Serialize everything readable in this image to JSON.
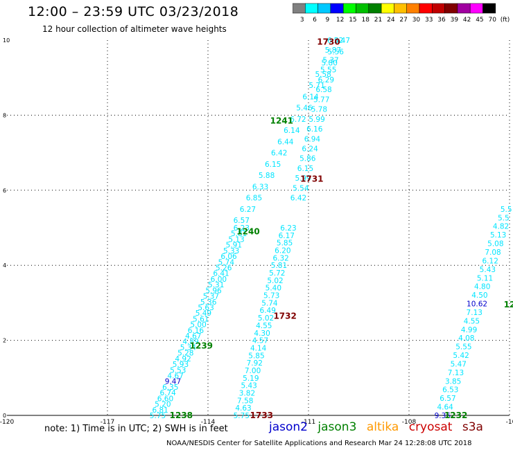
{
  "header": {
    "title": "12:00 – 23:59 UTC 03/23/2018",
    "subtitle": "12 hour collection of altimeter wave heights"
  },
  "color_scale": {
    "labels": [
      "3",
      "6",
      "9",
      "12",
      "15",
      "18",
      "21",
      "24",
      "27",
      "30",
      "33",
      "36",
      "39",
      "42",
      "45",
      "70",
      "(ft)"
    ],
    "colors": [
      "#808080",
      "#00ffff",
      "#00c8ff",
      "#0000ff",
      "#00ff00",
      "#00c000",
      "#008000",
      "#ffff00",
      "#ffc000",
      "#ff8000",
      "#ff0000",
      "#c00000",
      "#800000",
      "#a000a0",
      "#ff00ff",
      "#000000"
    ]
  },
  "legend": {
    "jason2": {
      "label": "jason2",
      "color": "#0000cc"
    },
    "jason3": {
      "label": "jason3",
      "color": "#008000"
    },
    "altika": {
      "label": "altika",
      "color": "#ff9900"
    },
    "cryosat": {
      "label": "cryosat",
      "color": "#cc0000"
    },
    "s3a": {
      "label": "s3a",
      "color": "#800000"
    }
  },
  "note": "note:  1) Time is in UTC;  2) SWH is in feet",
  "credit": "NOAA/NESDIS Center for Satellite Applications and Research    Mar 24 12:28:08 UTC 2018",
  "chart_data": {
    "type": "scatter",
    "xlim": [
      -120,
      -105
    ],
    "ylim": [
      0,
      10
    ],
    "xticks": [
      "-120",
      "-117",
      "-114",
      "-111",
      "-108",
      "-105"
    ],
    "yticks": [
      "0",
      "2",
      "4",
      "6",
      "8",
      "10"
    ],
    "grid": true,
    "x_axis_cut_off_label": "-10",
    "series": [
      {
        "name": "1238",
        "color": "#00e5ff",
        "x0": -115.5,
        "y0": 0.0,
        "x1": -113.0,
        "y1": 5.0,
        "values": [
          "5.75",
          "6.81",
          "5.20",
          "6.60",
          "6.74",
          "6.35",
          "9.47",
          "4.67",
          "5.53",
          "5.93",
          "4.92",
          "5.28",
          "5.34",
          "4.89",
          "4.67",
          "6.16",
          "5.00",
          "5.61",
          "5.49",
          "5.63",
          "5.36",
          "5.37",
          "5.96",
          "5.31",
          "6.00",
          "6.41",
          "5.26",
          "5.74",
          "6.06",
          "5.33",
          "5.91",
          "5.13",
          "5.81",
          "6.23"
        ],
        "highlight": {
          "9.47": "#0000cc"
        }
      },
      {
        "name": "1240",
        "color": "#00e5ff",
        "x0": -113.0,
        "y0": 5.2,
        "x1": -110.0,
        "y1": 10.0,
        "values": [
          "6.57",
          "6.27",
          "6.85",
          "6.33",
          "5.88",
          "6.15",
          "6.42",
          "6.44",
          "6.14",
          "6.72",
          "5.46",
          "6.14",
          "5.71",
          "5.58",
          "5.80",
          "5.56",
          "5.47"
        ]
      },
      {
        "name": "1733",
        "color": "#00e5ff",
        "x0": -113.0,
        "y0": 0.0,
        "x1": -111.6,
        "y1": 5.0,
        "values": [
          "5.75",
          "4.63",
          "7.58",
          "3.82",
          "5.43",
          "5.19",
          "7.00",
          "7.92",
          "5.85",
          "4.14",
          "4.57",
          "4.30",
          "4.55",
          "5.02",
          "6.49",
          "5.74",
          "5.73",
          "5.40",
          "5.02",
          "5.72",
          "5.81",
          "6.32",
          "6.20",
          "5.85",
          "6.17",
          "6.23"
        ]
      },
      {
        "name": "1730",
        "color": "#00e5ff",
        "x0": -111.3,
        "y0": 5.8,
        "x1": -110.2,
        "y1": 10.0,
        "values": [
          "6.42",
          "5.54",
          "5.99",
          "6.15",
          "5.86",
          "6.24",
          "6.94",
          "6.16",
          "5.99",
          "5.78",
          "5.77",
          "6.58",
          "6.29",
          "5.55",
          "5.37",
          "5.87",
          "6.32"
        ]
      },
      {
        "name": "1232",
        "color": "#00e5ff",
        "x0": -107.0,
        "y0": 0.0,
        "x1": -105.1,
        "y1": 5.5,
        "values": [
          "9.36",
          "4.64",
          "6.57",
          "6.53",
          "3.85",
          "7.13",
          "5.47",
          "5.42",
          "5.55",
          "4.08",
          "4.99",
          "4.55",
          "7.13",
          "10.62",
          "4.50",
          "4.80",
          "5.11",
          "5.43",
          "6.12",
          "7.08",
          "5.08",
          "5.13",
          "4.82",
          "5.5",
          "5.5"
        ],
        "highlight": {
          "9.36": "#0000cc",
          "10.62": "#0000cc"
        }
      }
    ],
    "annotations": [
      {
        "text": "1238",
        "x": -114.8,
        "y": 0.0,
        "color": "#008000"
      },
      {
        "text": "1239",
        "x": -114.2,
        "y": 1.85,
        "color": "#008000"
      },
      {
        "text": "1240",
        "x": -112.8,
        "y": 4.9,
        "color": "#008000"
      },
      {
        "text": "1241",
        "x": -111.8,
        "y": 7.85,
        "color": "#008000"
      },
      {
        "text": "1733",
        "x": -112.4,
        "y": 0.0,
        "color": "#800000"
      },
      {
        "text": "1732",
        "x": -111.7,
        "y": 2.65,
        "color": "#800000"
      },
      {
        "text": "1731",
        "x": -110.9,
        "y": 6.3,
        "color": "#800000"
      },
      {
        "text": "1730",
        "x": -110.4,
        "y": 9.95,
        "color": "#800000"
      },
      {
        "text": "1232",
        "x": -106.6,
        "y": 0.0,
        "color": "#008000"
      },
      {
        "text": "12",
        "x": -105.0,
        "y": 2.95,
        "color": "#008000"
      }
    ]
  }
}
